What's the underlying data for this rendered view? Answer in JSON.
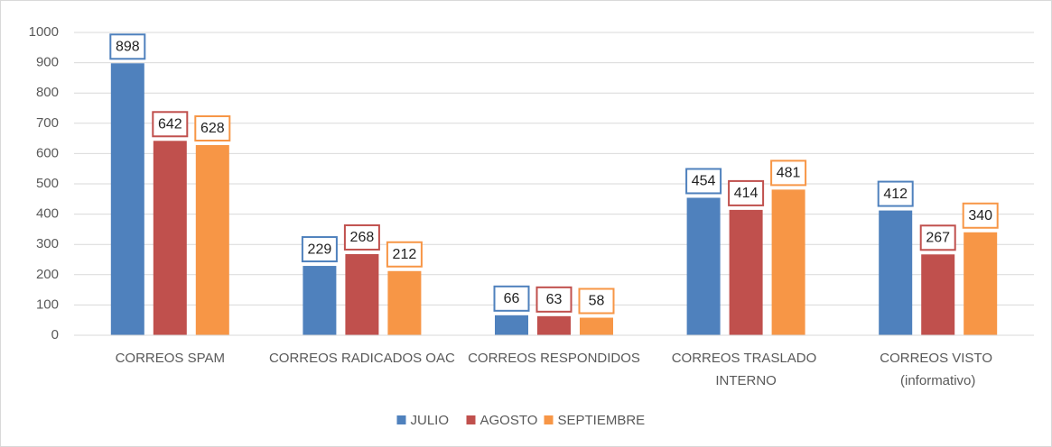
{
  "chart_data": {
    "type": "bar",
    "categories": [
      "CORREOS SPAM",
      "CORREOS RADICADOS OAC",
      "CORREOS RESPONDIDOS",
      "CORREOS TRASLADO INTERNO",
      "CORREOS VISTO (informativo)"
    ],
    "series": [
      {
        "name": "JULIO",
        "color": "#4f81bd",
        "values": [
          898,
          229,
          66,
          454,
          412
        ]
      },
      {
        "name": "AGOSTO",
        "color": "#c0504d",
        "values": [
          642,
          268,
          63,
          414,
          267
        ]
      },
      {
        "name": "SEPTIEMBRE",
        "color": "#f79646",
        "values": [
          628,
          212,
          58,
          481,
          340
        ]
      }
    ],
    "ylim": [
      0,
      1000
    ],
    "yticks": [
      0,
      100,
      200,
      300,
      400,
      500,
      600,
      700,
      800,
      900,
      1000
    ],
    "grid": true,
    "legend": "bottom"
  }
}
